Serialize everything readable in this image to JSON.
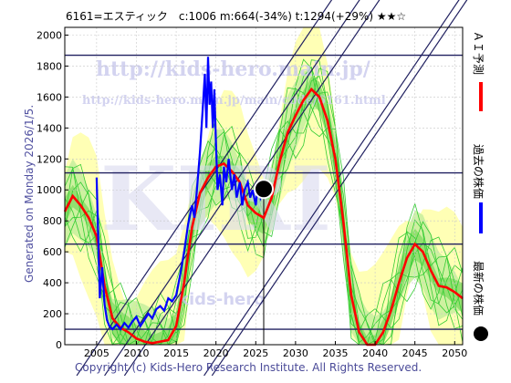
{
  "header": {
    "title": "6161=エスティック　c:1006  m:664(-34%)  t:1294(+29%)  ★★☆"
  },
  "side_text": "Generated on Monday 2026/1/5.",
  "footer": "Copyright (c) Kids-Hero Research Institute. All Rights Reserved.",
  "watermarks": {
    "url_large": "http://kids-hero.main.jp/",
    "url_small": "http://kids-hero.main.jp/main/code/6161.html",
    "big": "KIRI",
    "small": "kids-hero"
  },
  "legend": {
    "ai_forecast": "ＡＩ予測",
    "past_price": "過去の株価",
    "latest_price": "最新の株価"
  },
  "colors": {
    "ai_forecast": "#ff0000",
    "past_price": "#0000ff",
    "latest": "#000000",
    "band_fill": "#ffffa8",
    "band_green": "#33cc33",
    "guide_lines": "#202060"
  },
  "chart_data": {
    "type": "line",
    "xlim": [
      2001,
      2051
    ],
    "ylim": [
      0,
      2050
    ],
    "xticks": [
      2005,
      2010,
      2015,
      2020,
      2025,
      2030,
      2035,
      2040,
      2045,
      2050
    ],
    "yticks": [
      0,
      200,
      400,
      600,
      800,
      1000,
      1200,
      1400,
      1600,
      1800,
      2000
    ],
    "horizontal_levels": [
      1870,
      1110,
      650,
      100
    ],
    "latest_point": {
      "x": 2026.0,
      "y": 1006
    },
    "series": [
      {
        "name": "ＡＩ予測",
        "x": [
          2001,
          2002,
          2003,
          2004,
          2005,
          2006,
          2007,
          2008,
          2009,
          2010,
          2011,
          2012,
          2013,
          2014,
          2015,
          2016,
          2017,
          2018,
          2019,
          2020,
          2021,
          2022,
          2023,
          2024,
          2025,
          2026,
          2027,
          2028,
          2029,
          2030,
          2031,
          2032,
          2033,
          2034,
          2035,
          2036,
          2037,
          2038,
          2039,
          2040,
          2041,
          2042,
          2043,
          2044,
          2045,
          2046,
          2047,
          2048,
          2049,
          2050,
          2051
        ],
        "values": [
          860,
          960,
          900,
          820,
          700,
          380,
          170,
          110,
          80,
          40,
          20,
          10,
          20,
          30,
          120,
          400,
          760,
          980,
          1080,
          1150,
          1170,
          1120,
          1050,
          900,
          850,
          820,
          950,
          1180,
          1370,
          1480,
          1580,
          1650,
          1600,
          1450,
          1200,
          800,
          320,
          80,
          0,
          0,
          80,
          220,
          400,
          560,
          650,
          600,
          480,
          380,
          370,
          340,
          300
        ]
      },
      {
        "name": "過去の株価",
        "x": [
          2005.0,
          2005.2,
          2005.4,
          2005.7,
          2006.0,
          2006.3,
          2006.6,
          2007.0,
          2007.5,
          2008.0,
          2008.5,
          2009.0,
          2009.5,
          2010.0,
          2010.5,
          2011.0,
          2011.5,
          2012.0,
          2012.5,
          2013.0,
          2013.5,
          2014.0,
          2014.5,
          2015.0,
          2015.5,
          2016.0,
          2016.5,
          2017.0,
          2017.3,
          2017.6,
          2018.0,
          2018.3,
          2018.6,
          2018.8,
          2019.0,
          2019.2,
          2019.4,
          2019.6,
          2019.8,
          2020.0,
          2020.2,
          2020.5,
          2020.8,
          2021.0,
          2021.3,
          2021.6,
          2022.0,
          2022.3,
          2022.6,
          2023.0,
          2023.3,
          2023.6,
          2024.0,
          2024.3,
          2024.6,
          2025.0,
          2025.3,
          2025.6,
          2026.0
        ],
        "values": [
          1080,
          700,
          300,
          500,
          260,
          160,
          120,
          100,
          130,
          100,
          140,
          110,
          150,
          180,
          120,
          160,
          200,
          170,
          230,
          250,
          220,
          300,
          280,
          320,
          450,
          600,
          780,
          900,
          820,
          1000,
          1250,
          1500,
          1750,
          1400,
          1860,
          1550,
          1700,
          1400,
          1650,
          1300,
          1000,
          1100,
          900,
          1150,
          1050,
          1200,
          1000,
          1100,
          950,
          1050,
          900,
          1000,
          1050,
          950,
          1000,
          900,
          1050,
          950,
          1006
        ]
      }
    ]
  }
}
